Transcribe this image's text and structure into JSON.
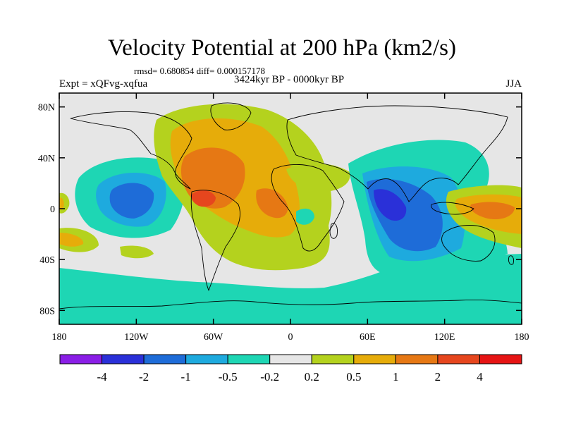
{
  "title": "Velocity Potential at 200 hPa (km2/s)",
  "stats": "rmsd= 0.680854 diff= 0.000157178",
  "left_label": "Expt = xQFvg-xqfua",
  "center_label": "3424kyr BP - 0000kyr BP",
  "right_label": "JJA",
  "map": {
    "lon_ticks": [
      "180",
      "120W",
      "60W",
      "0",
      "60E",
      "120E",
      "180"
    ],
    "lat_ticks": [
      "80N",
      "40N",
      "0",
      "40S",
      "80S"
    ],
    "background_color": "#e6e6e6",
    "coastline_color": "#000000"
  },
  "colorbar": {
    "levels": [
      "-4",
      "-2",
      "-1",
      "-0.5",
      "-0.2",
      "0.2",
      "0.5",
      "1",
      "2",
      "4"
    ],
    "colors": [
      "#8a1ee6",
      "#2a30d8",
      "#1e6cd8",
      "#1eaade",
      "#1ed6b4",
      "#e6e6e6",
      "#b4d21e",
      "#e6ac0a",
      "#e67814",
      "#e6461e",
      "#e61414"
    ]
  }
}
